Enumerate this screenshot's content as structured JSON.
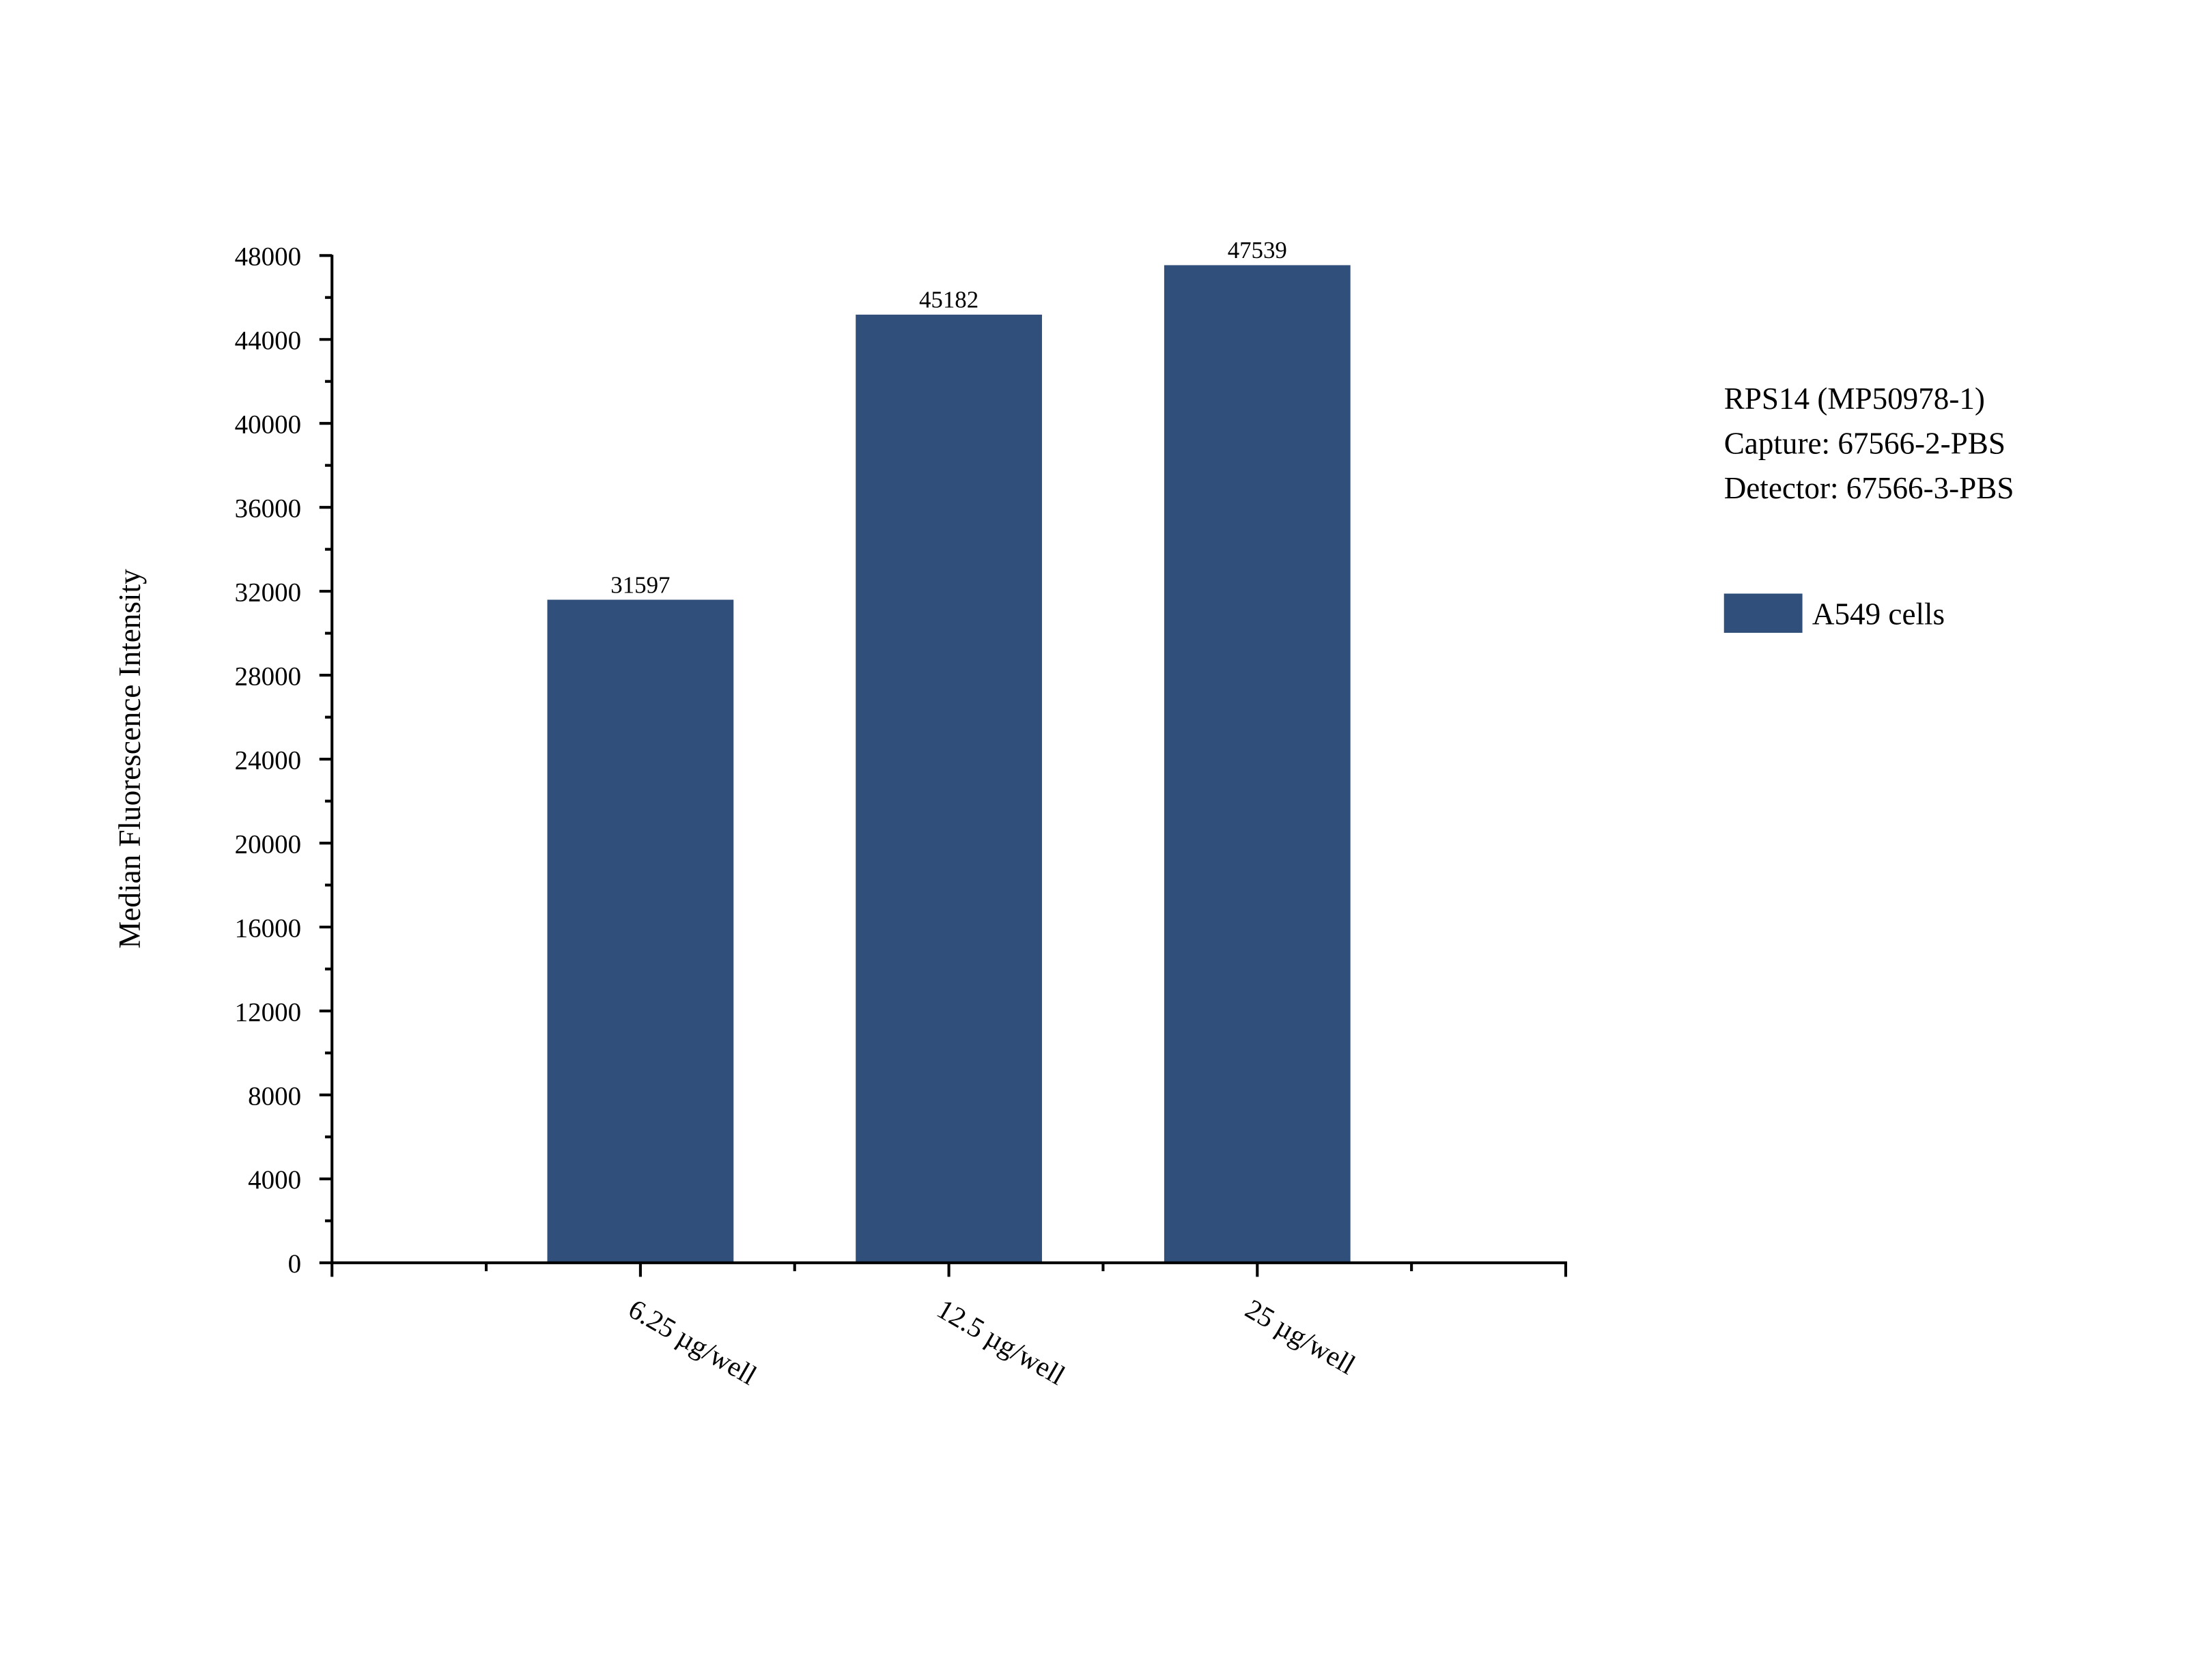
{
  "chart_data": {
    "type": "bar",
    "title": "",
    "xlabel": "",
    "ylabel": "Median Fluorescence Intensity",
    "categories": [
      "6.25 µg/well",
      "12.5 µg/well",
      "25 µg/well"
    ],
    "series": [
      {
        "name": "A549 cells",
        "values": [
          31597,
          45182,
          47539
        ],
        "color": "#304F7A"
      }
    ],
    "data_labels": [
      "31597",
      "45182",
      "47539"
    ],
    "ylim": [
      0,
      48000
    ],
    "yticks": [
      0,
      4000,
      8000,
      12000,
      16000,
      20000,
      24000,
      28000,
      32000,
      36000,
      40000,
      44000,
      48000
    ],
    "grid": false,
    "legend": {
      "placement": "right",
      "header_lines": [
        "RPS14 (MP50978-1)",
        "Capture: 67566-2-PBS",
        "Detector: 67566-3-PBS"
      ],
      "entry": "A549 cells"
    }
  }
}
